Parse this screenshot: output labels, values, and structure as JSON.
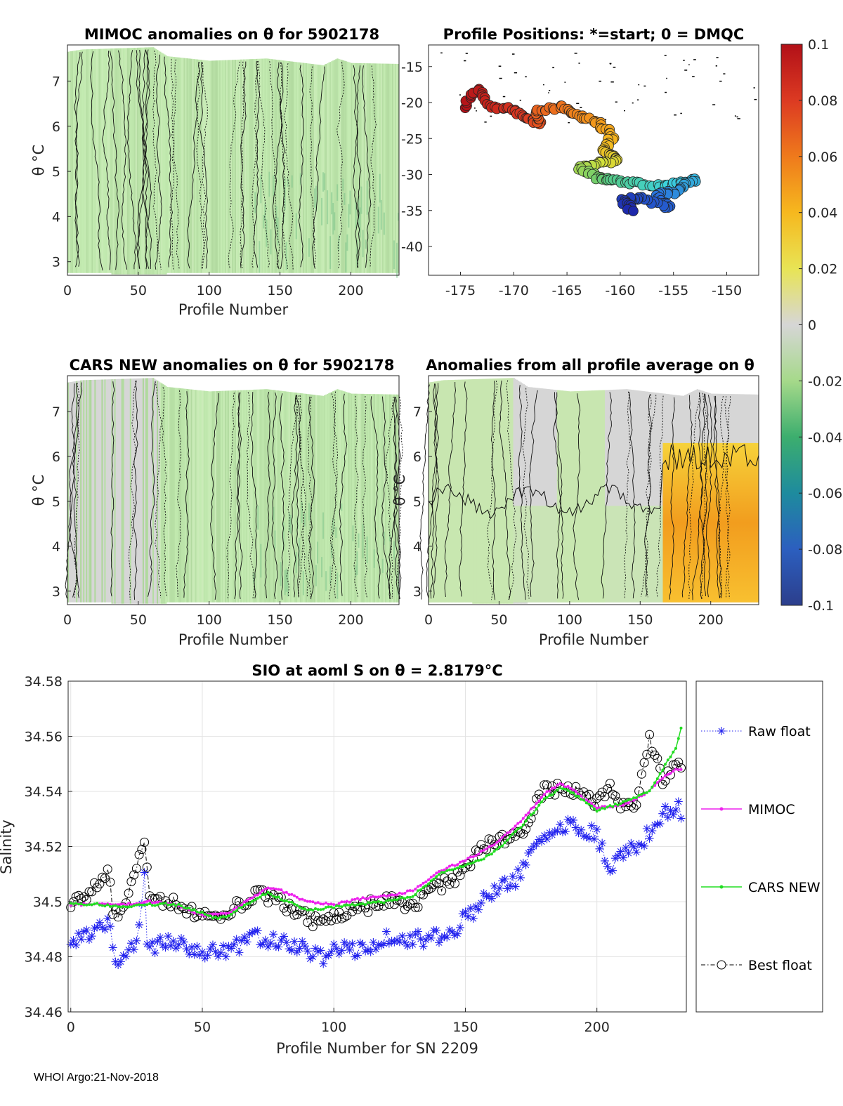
{
  "footer": "WHOI Argo:21-Nov-2018",
  "colors": {
    "raw_float": "#2222ee",
    "mimoc": "#ee22ee",
    "cars_new": "#22dd22",
    "best_float": "#000000",
    "field_green": "#c8e6b0",
    "field_gray": "#d6d6d6",
    "field_orange": "#f3a020"
  },
  "chart_data": [
    {
      "id": "mimoc",
      "type": "heatmap",
      "title": "MIMOC anomalies on θ  for 5902178",
      "xlabel": "Profile Number",
      "ylabel": "θ °C",
      "xlim": [
        0,
        234
      ],
      "ylim": [
        2.7,
        7.8
      ],
      "xticks": [
        "0",
        "50",
        "100",
        "150",
        "200"
      ],
      "yticks": [
        "3",
        "4",
        "5",
        "6",
        "7"
      ],
      "field_top_theta": [
        {
          "x": 0,
          "t": 7.65
        },
        {
          "x": 10,
          "t": 7.7
        },
        {
          "x": 60,
          "t": 7.75
        },
        {
          "x": 70,
          "t": 7.55
        },
        {
          "x": 100,
          "t": 7.45
        },
        {
          "x": 140,
          "t": 7.5
        },
        {
          "x": 180,
          "t": 7.35
        },
        {
          "x": 190,
          "t": 7.5
        },
        {
          "x": 200,
          "t": 7.4
        },
        {
          "x": 234,
          "t": 7.38
        }
      ],
      "anomaly_range": [
        -0.04,
        0.0
      ]
    },
    {
      "id": "positions",
      "type": "scatter",
      "title": "Profile Positions: *=start; 0 = DMQC",
      "xlim": [
        -178,
        -147
      ],
      "ylim": [
        -44,
        -12
      ],
      "xticks": [
        "-175",
        "-170",
        "-165",
        "-160",
        "-155",
        "-150"
      ],
      "yticks": [
        "-15",
        "-20",
        "-25",
        "-30",
        "-35",
        "-40"
      ],
      "track": [
        {
          "lon": -174.8,
          "lat": -20.5
        },
        {
          "lon": -173.4,
          "lat": -18.2
        },
        {
          "lon": -172.0,
          "lat": -20.6
        },
        {
          "lon": -170.0,
          "lat": -21.0
        },
        {
          "lon": -168.5,
          "lat": -22.4
        },
        {
          "lon": -167.5,
          "lat": -23.0
        },
        {
          "lon": -168.0,
          "lat": -21.2
        },
        {
          "lon": -165.5,
          "lat": -20.6
        },
        {
          "lon": -164.0,
          "lat": -21.6
        },
        {
          "lon": -162.0,
          "lat": -22.8
        },
        {
          "lon": -160.7,
          "lat": -24.6
        },
        {
          "lon": -161.5,
          "lat": -26.5
        },
        {
          "lon": -160.2,
          "lat": -28.0
        },
        {
          "lon": -162.0,
          "lat": -28.5
        },
        {
          "lon": -163.8,
          "lat": -29.2
        },
        {
          "lon": -162.0,
          "lat": -30.5
        },
        {
          "lon": -160.5,
          "lat": -30.8
        },
        {
          "lon": -158.0,
          "lat": -31.3
        },
        {
          "lon": -155.5,
          "lat": -31.6
        },
        {
          "lon": -153.0,
          "lat": -30.6
        },
        {
          "lon": -154.5,
          "lat": -32.3
        },
        {
          "lon": -156.5,
          "lat": -32.9
        },
        {
          "lon": -155.5,
          "lat": -34.6
        },
        {
          "lon": -158.0,
          "lat": -33.3
        },
        {
          "lon": -159.8,
          "lat": -33.5
        },
        {
          "lon": -159.0,
          "lat": -35.0
        }
      ],
      "colorbar": {
        "min": -0.1,
        "max": 0.1,
        "ticks": [
          "0.1",
          "0.08",
          "0.06",
          "0.04",
          "0.02",
          "0",
          "-0.02",
          "-0.04",
          "-0.06",
          "-0.08",
          "-0.1"
        ]
      }
    },
    {
      "id": "cars",
      "type": "heatmap",
      "title": "CARS NEW anomalies on θ for 5902178",
      "xlabel": "Profile Number",
      "ylabel": "θ °C",
      "xlim": [
        0,
        234
      ],
      "ylim": [
        2.7,
        7.8
      ],
      "xticks": [
        "0",
        "50",
        "100",
        "150",
        "200"
      ],
      "yticks": [
        "3",
        "4",
        "5",
        "6",
        "7"
      ],
      "anomaly_range": [
        -0.04,
        0.0
      ]
    },
    {
      "id": "average",
      "type": "heatmap",
      "title": "Anomalies from all profile average on θ",
      "xlabel": "Profile Number",
      "ylabel": "θ °C",
      "xlim": [
        0,
        234
      ],
      "ylim": [
        2.7,
        7.8
      ],
      "xticks": [
        "0",
        "50",
        "100",
        "150",
        "200"
      ],
      "yticks": [
        "3",
        "4",
        "5",
        "6",
        "7"
      ],
      "anomaly_range": [
        -0.02,
        0.04
      ]
    },
    {
      "id": "salinity",
      "type": "line",
      "title": "SIO at aoml S on θ = 2.8179°C",
      "xlabel": "Profile Number for SN 2209",
      "ylabel": "Salinity",
      "xlim": [
        -1,
        234
      ],
      "ylim": [
        34.46,
        34.58
      ],
      "xticks": [
        "0",
        "50",
        "100",
        "150",
        "200"
      ],
      "yticks": [
        "34.58",
        "34.56",
        "34.54",
        "34.52",
        "34.5",
        "34.48",
        "34.46"
      ],
      "grid": true,
      "legend": [
        "Raw float",
        "MIMOC",
        "CARS NEW",
        "Best float"
      ],
      "legend_position": "outside-right",
      "series": [
        {
          "name": "Raw float",
          "x": [
            0,
            15,
            16,
            17,
            25,
            28,
            29,
            30,
            40,
            50,
            60,
            70,
            80,
            90,
            95,
            100,
            110,
            120,
            130,
            140,
            145,
            150,
            160,
            170,
            175,
            180,
            190,
            200,
            205,
            210,
            215,
            220,
            225,
            230,
            232
          ],
          "values": [
            34.484,
            34.492,
            34.481,
            34.478,
            34.486,
            34.508,
            34.486,
            34.484,
            34.485,
            34.481,
            34.482,
            34.487,
            34.486,
            34.482,
            34.48,
            34.482,
            34.483,
            34.487,
            34.486,
            34.487,
            34.489,
            34.494,
            34.503,
            34.509,
            34.518,
            34.524,
            34.528,
            34.524,
            34.513,
            34.518,
            34.52,
            34.525,
            34.531,
            34.535,
            34.533
          ]
        },
        {
          "name": "MIMOC",
          "x": [
            0,
            10,
            20,
            30,
            40,
            50,
            60,
            70,
            75,
            80,
            90,
            100,
            110,
            120,
            130,
            140,
            150,
            160,
            170,
            180,
            186,
            190,
            200,
            210,
            220,
            225,
            230
          ],
          "values": [
            34.499,
            34.499,
            34.499,
            34.5,
            34.499,
            34.495,
            34.496,
            34.502,
            34.505,
            34.504,
            34.5,
            34.499,
            34.501,
            34.502,
            34.504,
            34.511,
            34.515,
            34.52,
            34.528,
            34.539,
            34.543,
            34.541,
            34.534,
            34.535,
            34.54,
            34.545,
            34.548
          ]
        },
        {
          "name": "CARS NEW",
          "x": [
            0,
            10,
            20,
            30,
            40,
            50,
            55,
            60,
            70,
            75,
            80,
            90,
            100,
            110,
            120,
            130,
            140,
            150,
            160,
            170,
            180,
            186,
            190,
            200,
            210,
            220,
            225,
            230,
            232
          ],
          "values": [
            34.499,
            34.499,
            34.498,
            34.499,
            34.499,
            34.496,
            34.494,
            34.495,
            34.501,
            34.503,
            34.501,
            34.497,
            34.498,
            34.499,
            34.5,
            34.502,
            34.51,
            34.513,
            34.517,
            34.526,
            34.537,
            34.541,
            34.54,
            34.533,
            34.536,
            34.54,
            34.548,
            34.556,
            34.563
          ]
        },
        {
          "name": "Best float",
          "x": [
            0,
            10,
            13,
            15,
            16,
            20,
            28,
            30,
            40,
            50,
            60,
            70,
            80,
            90,
            95,
            100,
            110,
            120,
            130,
            140,
            145,
            150,
            160,
            170,
            175,
            180,
            190,
            200,
            205,
            210,
            215,
            220,
            225,
            230,
            232
          ],
          "values": [
            34.499,
            34.505,
            34.511,
            34.509,
            34.493,
            34.499,
            34.521,
            34.501,
            34.499,
            34.495,
            34.496,
            34.503,
            34.5,
            34.494,
            34.492,
            34.495,
            34.497,
            34.501,
            34.499,
            34.505,
            34.508,
            34.513,
            34.522,
            34.524,
            34.531,
            34.541,
            34.541,
            34.535,
            34.543,
            34.534,
            34.537,
            34.559,
            34.544,
            34.55,
            34.547
          ]
        }
      ]
    }
  ]
}
